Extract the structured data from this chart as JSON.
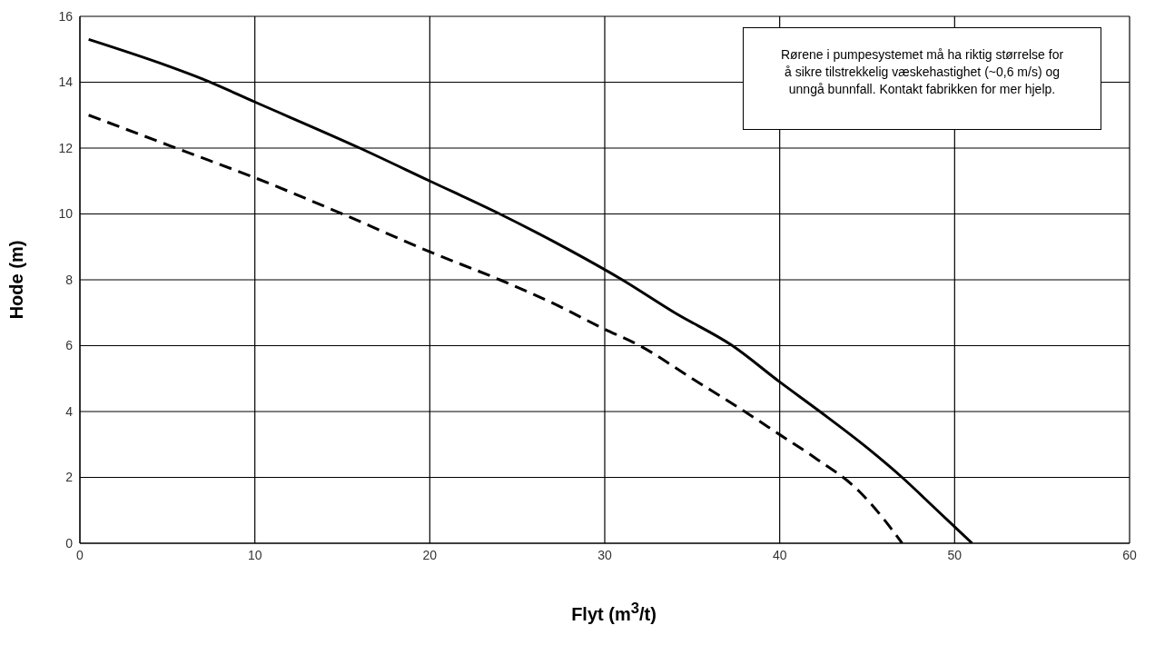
{
  "chart_data": {
    "type": "line",
    "xlabel": "Flyt (m$^{3}$/t)",
    "ylabel": "Hode (m)",
    "annotations": [
      "Rørene i pumpesystemet må ha riktig størrelse for å sikre tilstrekkelig væskehastighet (~0,6 m/s) og unngå bunnfall. Kontakt fabrikken for mer hjelp."
    ],
    "series": [
      {
        "color": "#000000",
        "line_style": "dashed",
        "x": [
          0.5,
          6,
          10,
          15,
          20,
          24,
          27,
          30,
          32,
          35,
          38,
          40,
          42,
          44.5,
          46,
          47
        ],
        "values": [
          13,
          11.9,
          11.1,
          10,
          8.85,
          8,
          7.3,
          6.5,
          6,
          5,
          4,
          3.3,
          2.6,
          1.6,
          0.7,
          0
        ]
      },
      {
        "color": "#000000",
        "line_style": "solid",
        "x": [
          0.5,
          5,
          7,
          10,
          16,
          20,
          24,
          28,
          31,
          34,
          37.3,
          40,
          42.3,
          45,
          47,
          49,
          51
        ],
        "values": [
          15.3,
          14.5,
          14.1,
          13.4,
          12,
          11,
          10,
          8.9,
          8,
          7,
          6,
          4.9,
          4,
          2.9,
          2,
          1,
          0
        ]
      }
    ],
    "xlim": [
      0,
      60
    ],
    "xticks": [
      0,
      10,
      20,
      30,
      40,
      50,
      60
    ],
    "ylim": [
      0,
      16
    ],
    "yticks": [
      0,
      2,
      4,
      6,
      8,
      10,
      12,
      14,
      16
    ],
    "grid": true,
    "marker": "none"
  }
}
